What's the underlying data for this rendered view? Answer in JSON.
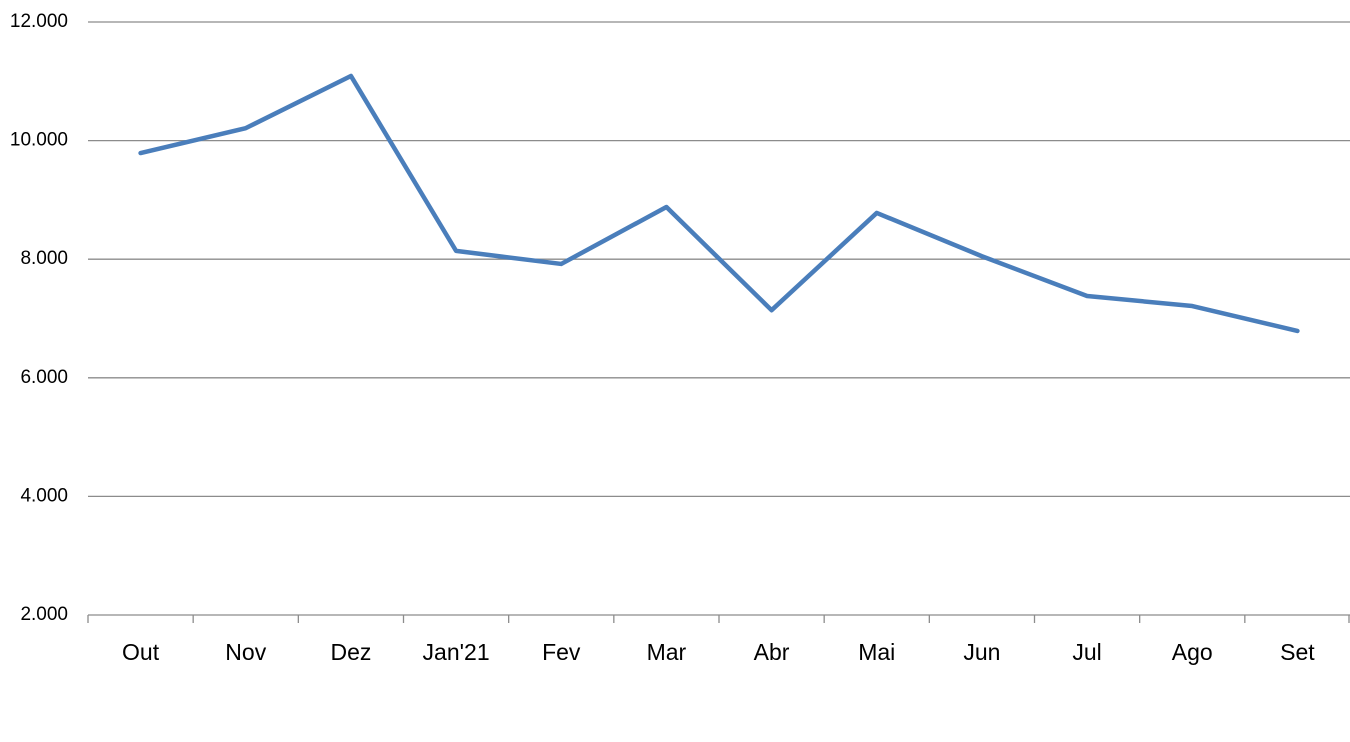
{
  "chart_data": {
    "type": "line",
    "categories": [
      "Out",
      "Nov",
      "Dez",
      "Jan'21",
      "Fev",
      "Mar",
      "Abr",
      "Mai",
      "Jun",
      "Jul",
      "Ago",
      "Set"
    ],
    "values": [
      9790,
      10210,
      11090,
      8140,
      7920,
      8880,
      7140,
      8780,
      8050,
      7380,
      7210,
      6790
    ],
    "color": "#4a7ebb",
    "ylim": [
      2000,
      12000
    ],
    "yticks": [
      {
        "value": 2000,
        "label": "2.000"
      },
      {
        "value": 4000,
        "label": "4.000"
      },
      {
        "value": 6000,
        "label": "6.000"
      },
      {
        "value": 8000,
        "label": "8.000"
      },
      {
        "value": 10000,
        "label": "10.000"
      },
      {
        "value": 12000,
        "label": "12.000"
      }
    ],
    "grid": true
  }
}
